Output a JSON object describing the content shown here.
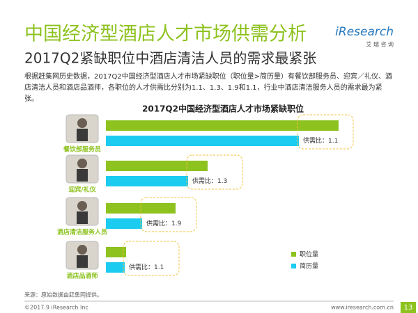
{
  "header": {
    "title": "中国经济型酒店人才市场供需分析",
    "subtitle": "2017Q2紧缺职位中酒店清洁人员的需求最紧张",
    "logo": "iResearch",
    "logo_sub": "艾 瑞 咨 询"
  },
  "description": "根据赶集网历史数据，2017Q2中国经济型酒店人才市场紧缺职位（职位量>简历量）有餐饮部服务员、迎宾／礼仪、酒店清洁人员和酒店品酒师，各职位的人才供需比分别为1.1、1.3、1.9和1.1，行业中酒店清洁服务人员的需求最为紧张。",
  "chart_data": {
    "type": "bar",
    "orientation": "horizontal",
    "title": "2017Q2中国经济型酒店人才市场紧缺职位",
    "categories": [
      "餐饮部服务员",
      "迎宾/礼仪",
      "酒店清洁服务人员",
      "酒店品酒师"
    ],
    "series": [
      {
        "name": "职位量",
        "color": "#8dc21f",
        "values": [
          334,
          146,
          100,
          29
        ]
      },
      {
        "name": "简历量",
        "color": "#1ccbf0",
        "values": [
          277,
          118,
          52,
          27
        ]
      }
    ],
    "annotations": [
      "供需比：1.1",
      "供需比：1.3",
      "供需比：1.9",
      "供需比：1.1"
    ]
  },
  "footer": {
    "source": "来源：原始数据由赶集网提供。",
    "copyright": "©2017.9 iResearch Inc",
    "url": "www.iresearch.com.cn",
    "page": "13"
  }
}
